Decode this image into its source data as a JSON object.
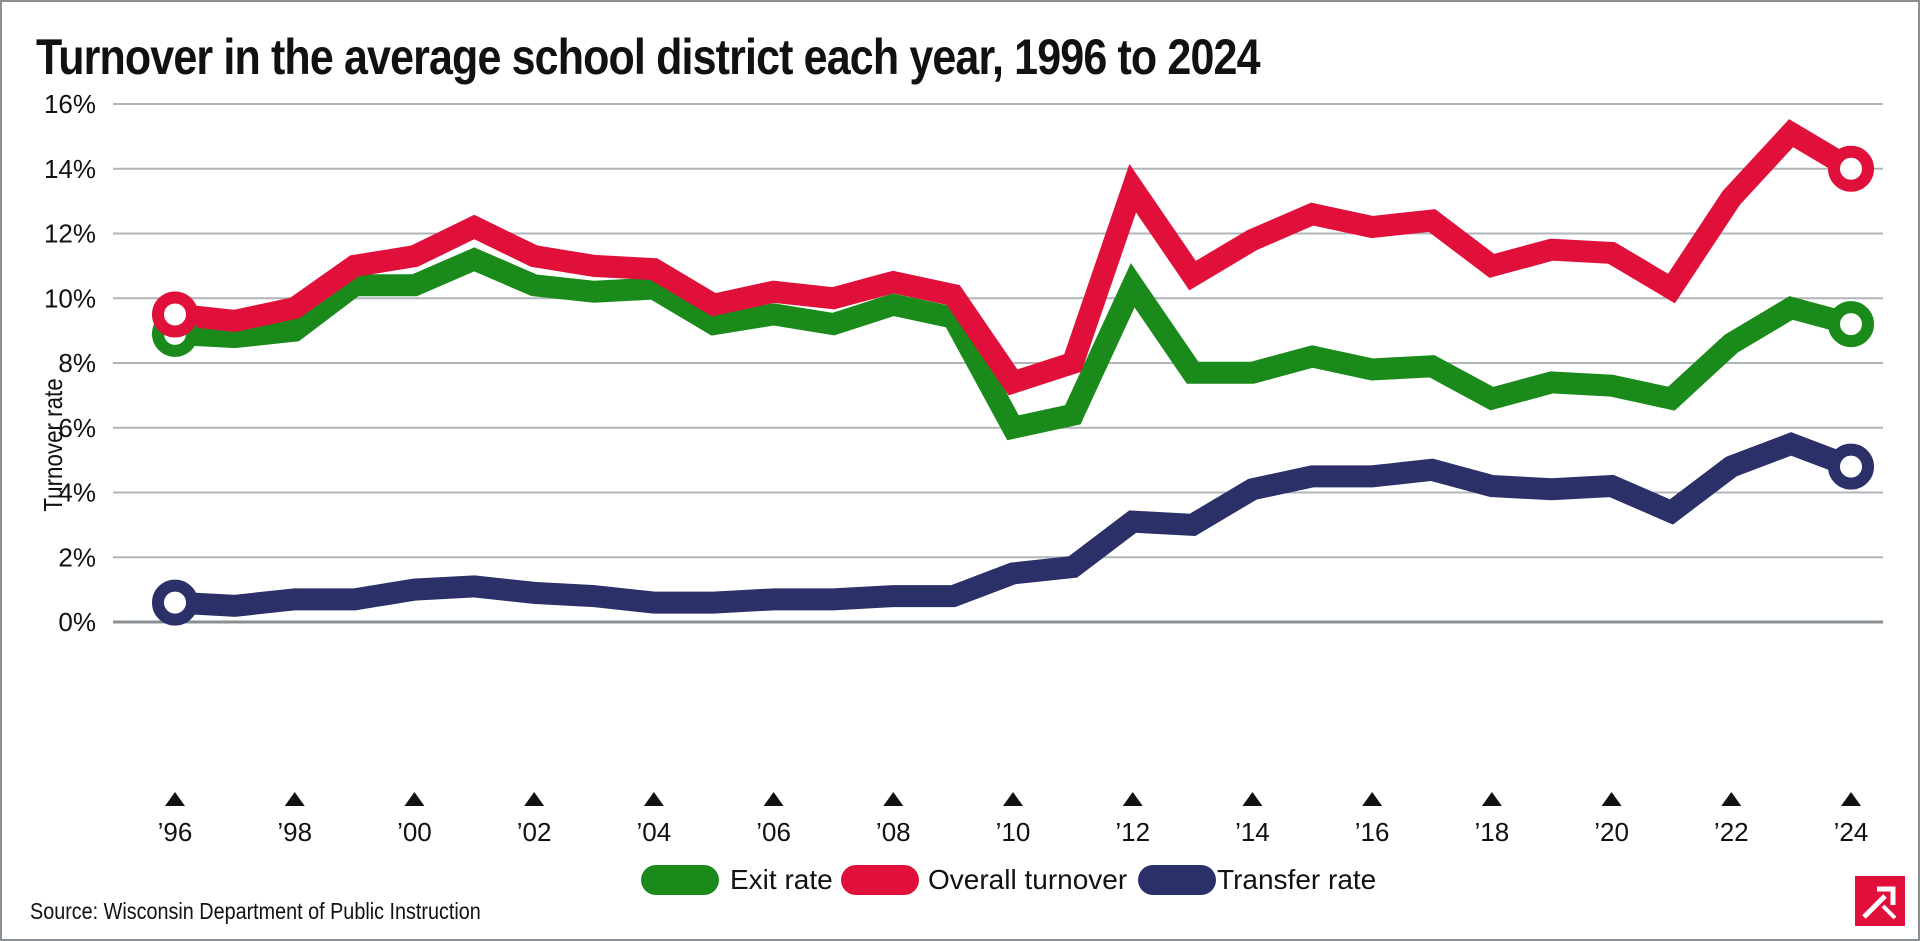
{
  "chart_data": {
    "type": "line",
    "title": "Turnover in the average school district each year, 1996 to 2024",
    "xlabel": "",
    "ylabel": "Turnover rate",
    "ylim": [
      0,
      16
    ],
    "yticks": [
      0,
      2,
      4,
      6,
      8,
      10,
      12,
      14,
      16
    ],
    "ytick_labels": [
      "0%",
      "2%",
      "4%",
      "6%",
      "8%",
      "10%",
      "12%",
      "14%",
      "16%"
    ],
    "x": [
      1996,
      1997,
      1998,
      1999,
      2000,
      2001,
      2002,
      2003,
      2004,
      2005,
      2006,
      2007,
      2008,
      2009,
      2010,
      2011,
      2012,
      2013,
      2014,
      2015,
      2016,
      2017,
      2018,
      2019,
      2020,
      2021,
      2022,
      2023,
      2024
    ],
    "xtick_years": [
      1996,
      1998,
      2000,
      2002,
      2004,
      2006,
      2008,
      2010,
      2012,
      2014,
      2016,
      2018,
      2020,
      2022,
      2024
    ],
    "xtick_labels": [
      "’96",
      "’98",
      "’00",
      "’02",
      "’04",
      "’06",
      "’08",
      "’10",
      "’12",
      "’14",
      "’16",
      "’18",
      "’20",
      "’22",
      "’24"
    ],
    "grid": true,
    "legend_position": "bottom-center",
    "series": [
      {
        "name": "Exit rate",
        "color": "#1a8a1a",
        "values": [
          8.9,
          8.8,
          9.0,
          10.4,
          10.4,
          11.2,
          10.4,
          10.2,
          10.3,
          9.2,
          9.5,
          9.2,
          9.8,
          9.4,
          6.0,
          6.4,
          10.4,
          7.7,
          7.7,
          8.2,
          7.8,
          7.9,
          6.9,
          7.4,
          7.3,
          6.9,
          8.6,
          9.7,
          9.2
        ]
      },
      {
        "name": "Overall turnover",
        "color": "#e0103a",
        "values": [
          9.5,
          9.3,
          9.7,
          11.0,
          11.3,
          12.2,
          11.3,
          11.0,
          10.9,
          9.8,
          10.2,
          10.0,
          10.5,
          10.1,
          7.4,
          8.0,
          13.4,
          10.7,
          11.8,
          12.6,
          12.2,
          12.4,
          11.0,
          11.5,
          11.4,
          10.3,
          13.1,
          15.1,
          14.0
        ]
      },
      {
        "name": "Transfer rate",
        "color": "#2b3068",
        "values": [
          0.6,
          0.5,
          0.7,
          0.7,
          1.0,
          1.1,
          0.9,
          0.8,
          0.6,
          0.6,
          0.7,
          0.7,
          0.8,
          0.8,
          1.5,
          1.7,
          3.1,
          3.0,
          4.1,
          4.5,
          4.5,
          4.7,
          4.2,
          4.1,
          4.2,
          3.4,
          4.8,
          5.5,
          4.8
        ]
      }
    ],
    "source": "Source: Wisconsin Department of Public Instruction"
  },
  "colors": {
    "grid": "#b0b5b9",
    "baseline": "#8a8f94",
    "text": "#111111",
    "frame": "#8a8f94",
    "logo": "#e0103a"
  }
}
